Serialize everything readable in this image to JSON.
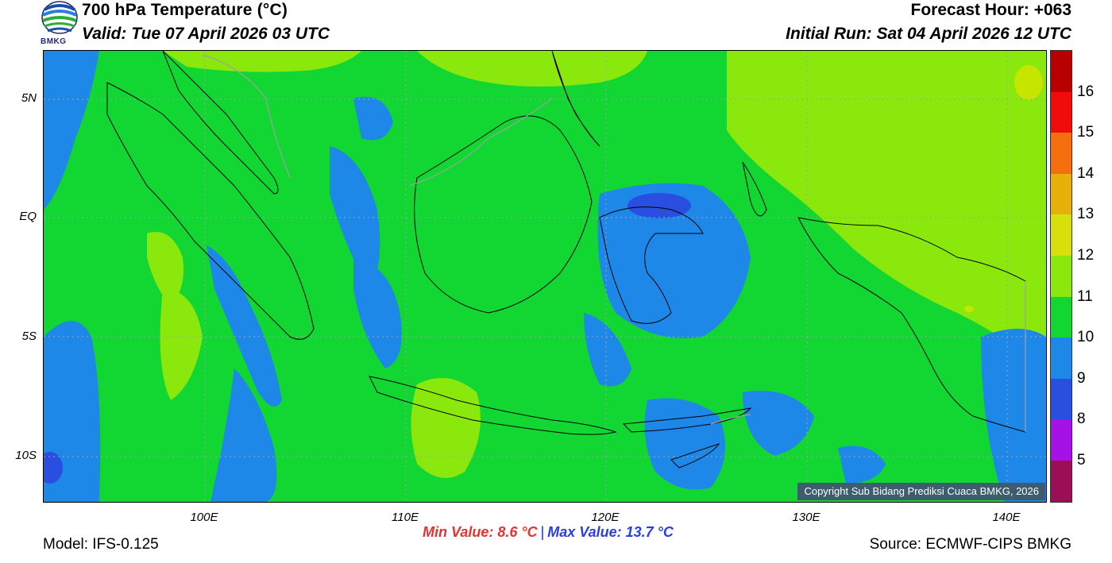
{
  "header": {
    "title": "700 hPa Temperature (°C)",
    "valid": "Valid: Tue 07 April 2026 03 UTC",
    "forecast_hour": "Forecast Hour: +063",
    "initial_run": "Initial Run: Sat 04 April 2026 12 UTC",
    "logo_text": "BMKG"
  },
  "map": {
    "lat_labels": [
      "5N",
      "EQ",
      "5S",
      "10S"
    ],
    "lon_labels": [
      "100E",
      "110E",
      "120E",
      "130E",
      "140E"
    ],
    "colors": {
      "c9": "#1e88e8",
      "c10": "#12d632",
      "c11": "#8ae80d",
      "c12": "#c6e600",
      "c8": "#2a4ee0"
    }
  },
  "colorbar": {
    "labels": [
      "16",
      "15",
      "14",
      "13",
      "12",
      "11",
      "10",
      "9",
      "8",
      "5"
    ],
    "colors": [
      "#b80000",
      "#f10c0c",
      "#f56f0f",
      "#e8b10a",
      "#d7e00a",
      "#8ae80d",
      "#12d632",
      "#1e88e8",
      "#2a4ee0",
      "#a412e6",
      "#9c0e55"
    ]
  },
  "stats": {
    "min": "Min Value: 8.6 °C",
    "separator": "|",
    "max": "Max Value: 13.7 °C"
  },
  "footer": {
    "model": "Model: IFS-0.125",
    "source": "Source: ECMWF-CIPS BMKG",
    "copyright": "Copyright Sub Bidang Prediksi Cuaca BMKG, 2026"
  }
}
